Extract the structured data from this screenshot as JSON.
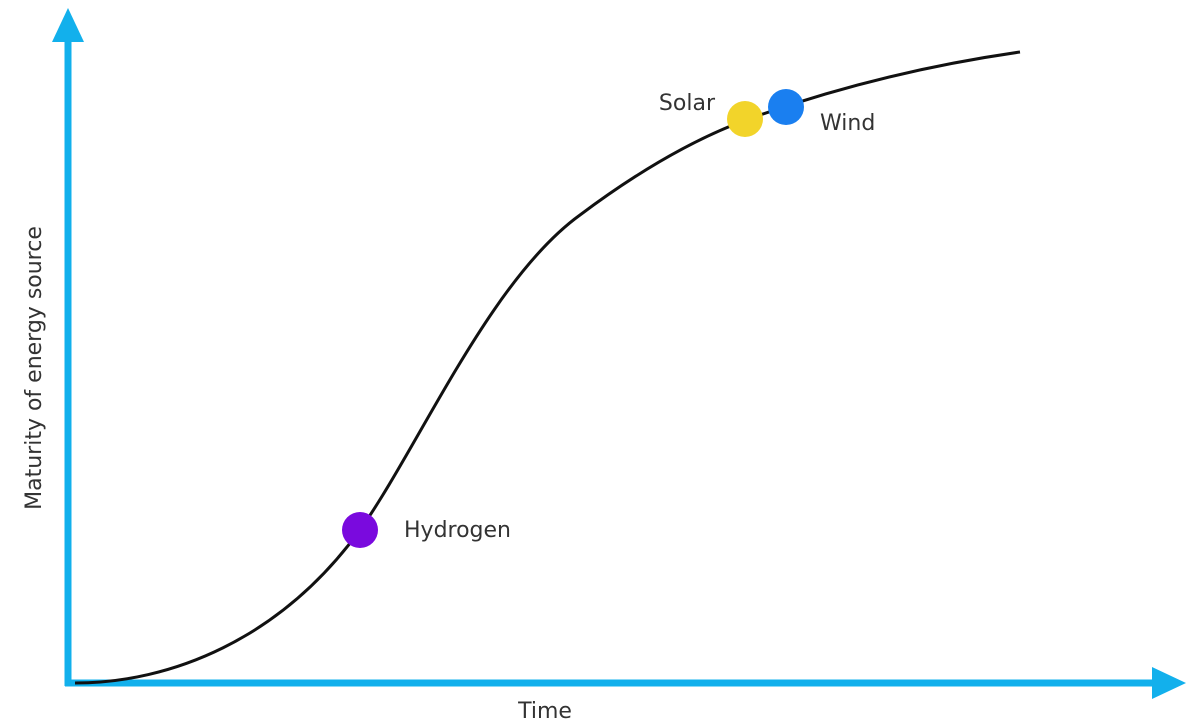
{
  "y_axis": {
    "label": "Maturity of energy source"
  },
  "x_axis": {
    "label": "Time"
  },
  "points": [
    {
      "label": "Hydrogen"
    },
    {
      "label": "Solar"
    },
    {
      "label": "Wind"
    }
  ]
}
